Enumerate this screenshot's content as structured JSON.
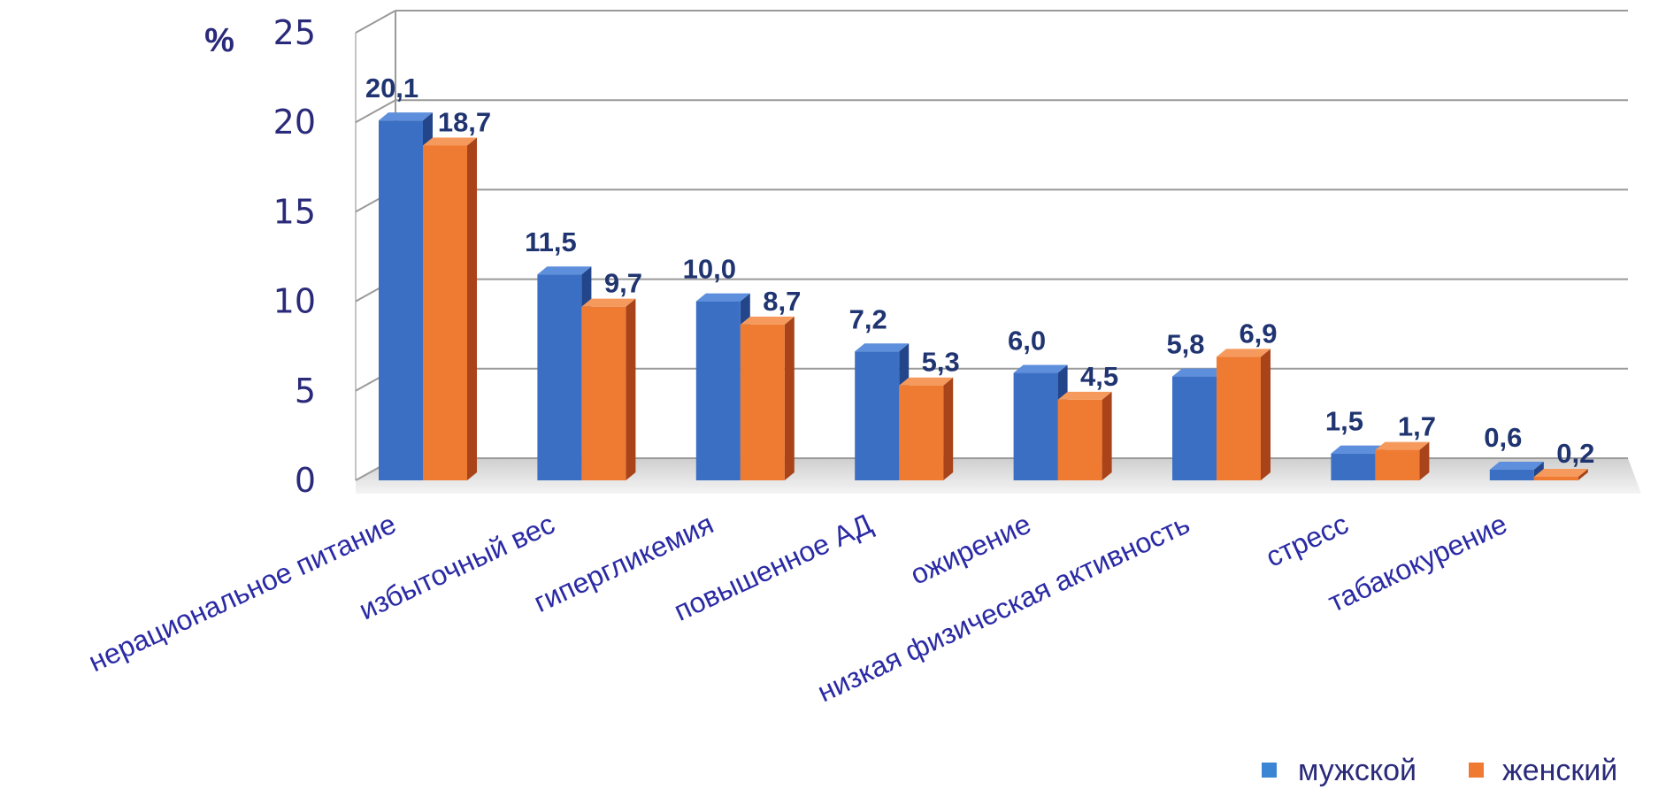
{
  "chart_data": {
    "type": "bar",
    "unit_label": "%",
    "categories": [
      "нерациональное питание",
      "избыточный вес",
      "гипергликемия",
      "повышенное АД",
      "ожирение",
      "низкая физическая активность",
      "стресс",
      "табакокурение"
    ],
    "series": [
      {
        "name": "мужской",
        "color": "#3b6fc4",
        "values": [
          20.1,
          11.5,
          10.0,
          7.2,
          6.0,
          5.8,
          1.5,
          0.6
        ],
        "labels": [
          "20,1",
          "11,5",
          "10,0",
          "7,2",
          "6,0",
          "5,8",
          "1,5",
          "0,6"
        ]
      },
      {
        "name": "женский",
        "color": "#ef7a32",
        "values": [
          18.7,
          9.7,
          8.7,
          5.3,
          4.5,
          6.9,
          1.7,
          0.2
        ],
        "labels": [
          "18,7",
          "9,7",
          "8,7",
          "5,3",
          "4,5",
          "6,9",
          "1,7",
          "0,2"
        ]
      }
    ],
    "ylim": [
      0,
      25
    ],
    "yticks": [
      "0",
      "5",
      "10",
      "15",
      "20",
      "25"
    ],
    "grid": true,
    "legend_position": "bottom-right",
    "style": "3d"
  }
}
